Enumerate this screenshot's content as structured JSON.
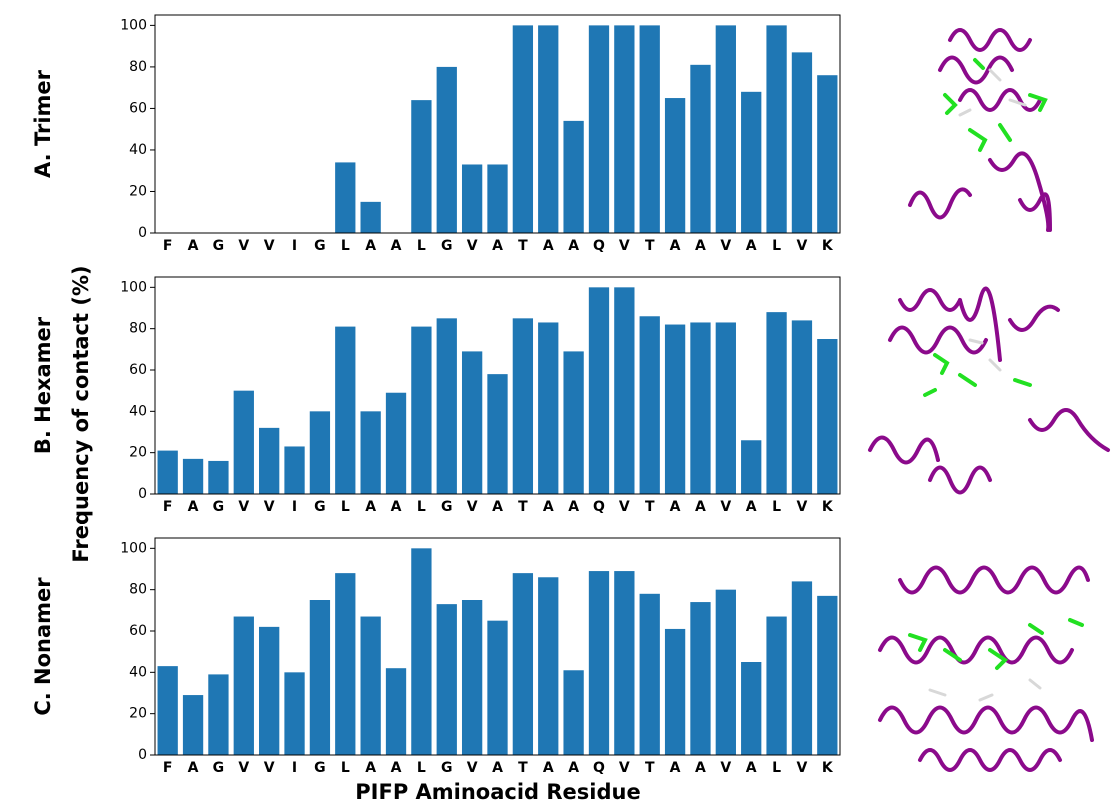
{
  "figure": {
    "ylabel": "Frequency of contact (%)",
    "xlabel": "PIFP Aminoacid Residue"
  },
  "chart_data": [
    {
      "type": "bar",
      "panel_label": "A. Trimer",
      "color": "#1f77b4",
      "categories": [
        "F",
        "A",
        "G",
        "V",
        "V",
        "I",
        "G",
        "L",
        "A",
        "A",
        "L",
        "G",
        "V",
        "A",
        "T",
        "A",
        "A",
        "Q",
        "V",
        "T",
        "A",
        "A",
        "V",
        "A",
        "L",
        "V",
        "K"
      ],
      "values": [
        0,
        0,
        0,
        0,
        0,
        0,
        0,
        34,
        15,
        0,
        64,
        80,
        33,
        33,
        100,
        100,
        54,
        100,
        100,
        100,
        65,
        81,
        100,
        68,
        100,
        87,
        76
      ],
      "ylim": [
        0,
        105
      ],
      "yticks": [
        0,
        20,
        40,
        60,
        80,
        100
      ]
    },
    {
      "type": "bar",
      "panel_label": "B. Hexamer",
      "color": "#1f77b4",
      "categories": [
        "F",
        "A",
        "G",
        "V",
        "V",
        "I",
        "G",
        "L",
        "A",
        "A",
        "L",
        "G",
        "V",
        "A",
        "T",
        "A",
        "A",
        "Q",
        "V",
        "T",
        "A",
        "A",
        "V",
        "A",
        "L",
        "V",
        "K"
      ],
      "values": [
        21,
        17,
        16,
        50,
        32,
        23,
        40,
        81,
        40,
        49,
        81,
        85,
        69,
        58,
        85,
        83,
        69,
        100,
        100,
        86,
        82,
        83,
        83,
        26,
        88,
        84,
        75
      ],
      "ylim": [
        0,
        105
      ],
      "yticks": [
        0,
        20,
        40,
        60,
        80,
        100
      ]
    },
    {
      "type": "bar",
      "panel_label": "C. Nonamer",
      "color": "#1f77b4",
      "categories": [
        "F",
        "A",
        "G",
        "V",
        "V",
        "I",
        "G",
        "L",
        "A",
        "A",
        "L",
        "G",
        "V",
        "A",
        "T",
        "A",
        "A",
        "Q",
        "V",
        "T",
        "A",
        "A",
        "V",
        "A",
        "L",
        "V",
        "K"
      ],
      "values": [
        43,
        29,
        39,
        67,
        62,
        40,
        75,
        88,
        67,
        42,
        100,
        73,
        75,
        65,
        88,
        86,
        41,
        89,
        89,
        78,
        61,
        74,
        80,
        45,
        67,
        84,
        77
      ],
      "ylim": [
        0,
        105
      ],
      "yticks": [
        0,
        20,
        40,
        60,
        80,
        100
      ]
    }
  ]
}
